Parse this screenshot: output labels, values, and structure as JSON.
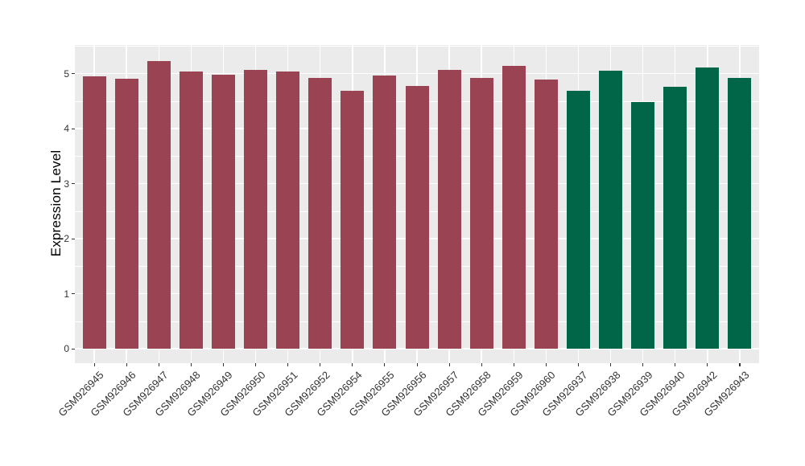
{
  "chart_data": {
    "type": "bar",
    "title": "",
    "xlabel": "",
    "ylabel": "Expression Level",
    "categories": [
      "GSM926945",
      "GSM926946",
      "GSM926947",
      "GSM926948",
      "GSM926949",
      "GSM926950",
      "GSM926951",
      "GSM926952",
      "GSM926954",
      "GSM926955",
      "GSM926956",
      "GSM926957",
      "GSM926958",
      "GSM926959",
      "GSM926960",
      "GSM926937",
      "GSM926938",
      "GSM926939",
      "GSM926940",
      "GSM926942",
      "GSM926943"
    ],
    "values": [
      4.95,
      4.91,
      5.23,
      5.03,
      4.98,
      5.06,
      5.04,
      4.92,
      4.68,
      4.97,
      4.78,
      5.07,
      4.92,
      5.14,
      4.89,
      4.69,
      5.05,
      4.48,
      4.76,
      5.11,
      4.92
    ],
    "groups": [
      "red",
      "red",
      "red",
      "red",
      "red",
      "red",
      "red",
      "red",
      "red",
      "red",
      "red",
      "red",
      "red",
      "red",
      "red",
      "green",
      "green",
      "green",
      "green",
      "green",
      "green"
    ],
    "group_colors": {
      "red": "#9A4352",
      "green": "#006647"
    },
    "yticks": [
      0,
      1,
      2,
      3,
      4,
      5
    ],
    "ylim": [
      0,
      5.52
    ],
    "grid": true,
    "legend_position": "none",
    "panel_bg": "#EBEBEB",
    "grid_color": "#FFFFFF",
    "tick_color": "#333333"
  }
}
